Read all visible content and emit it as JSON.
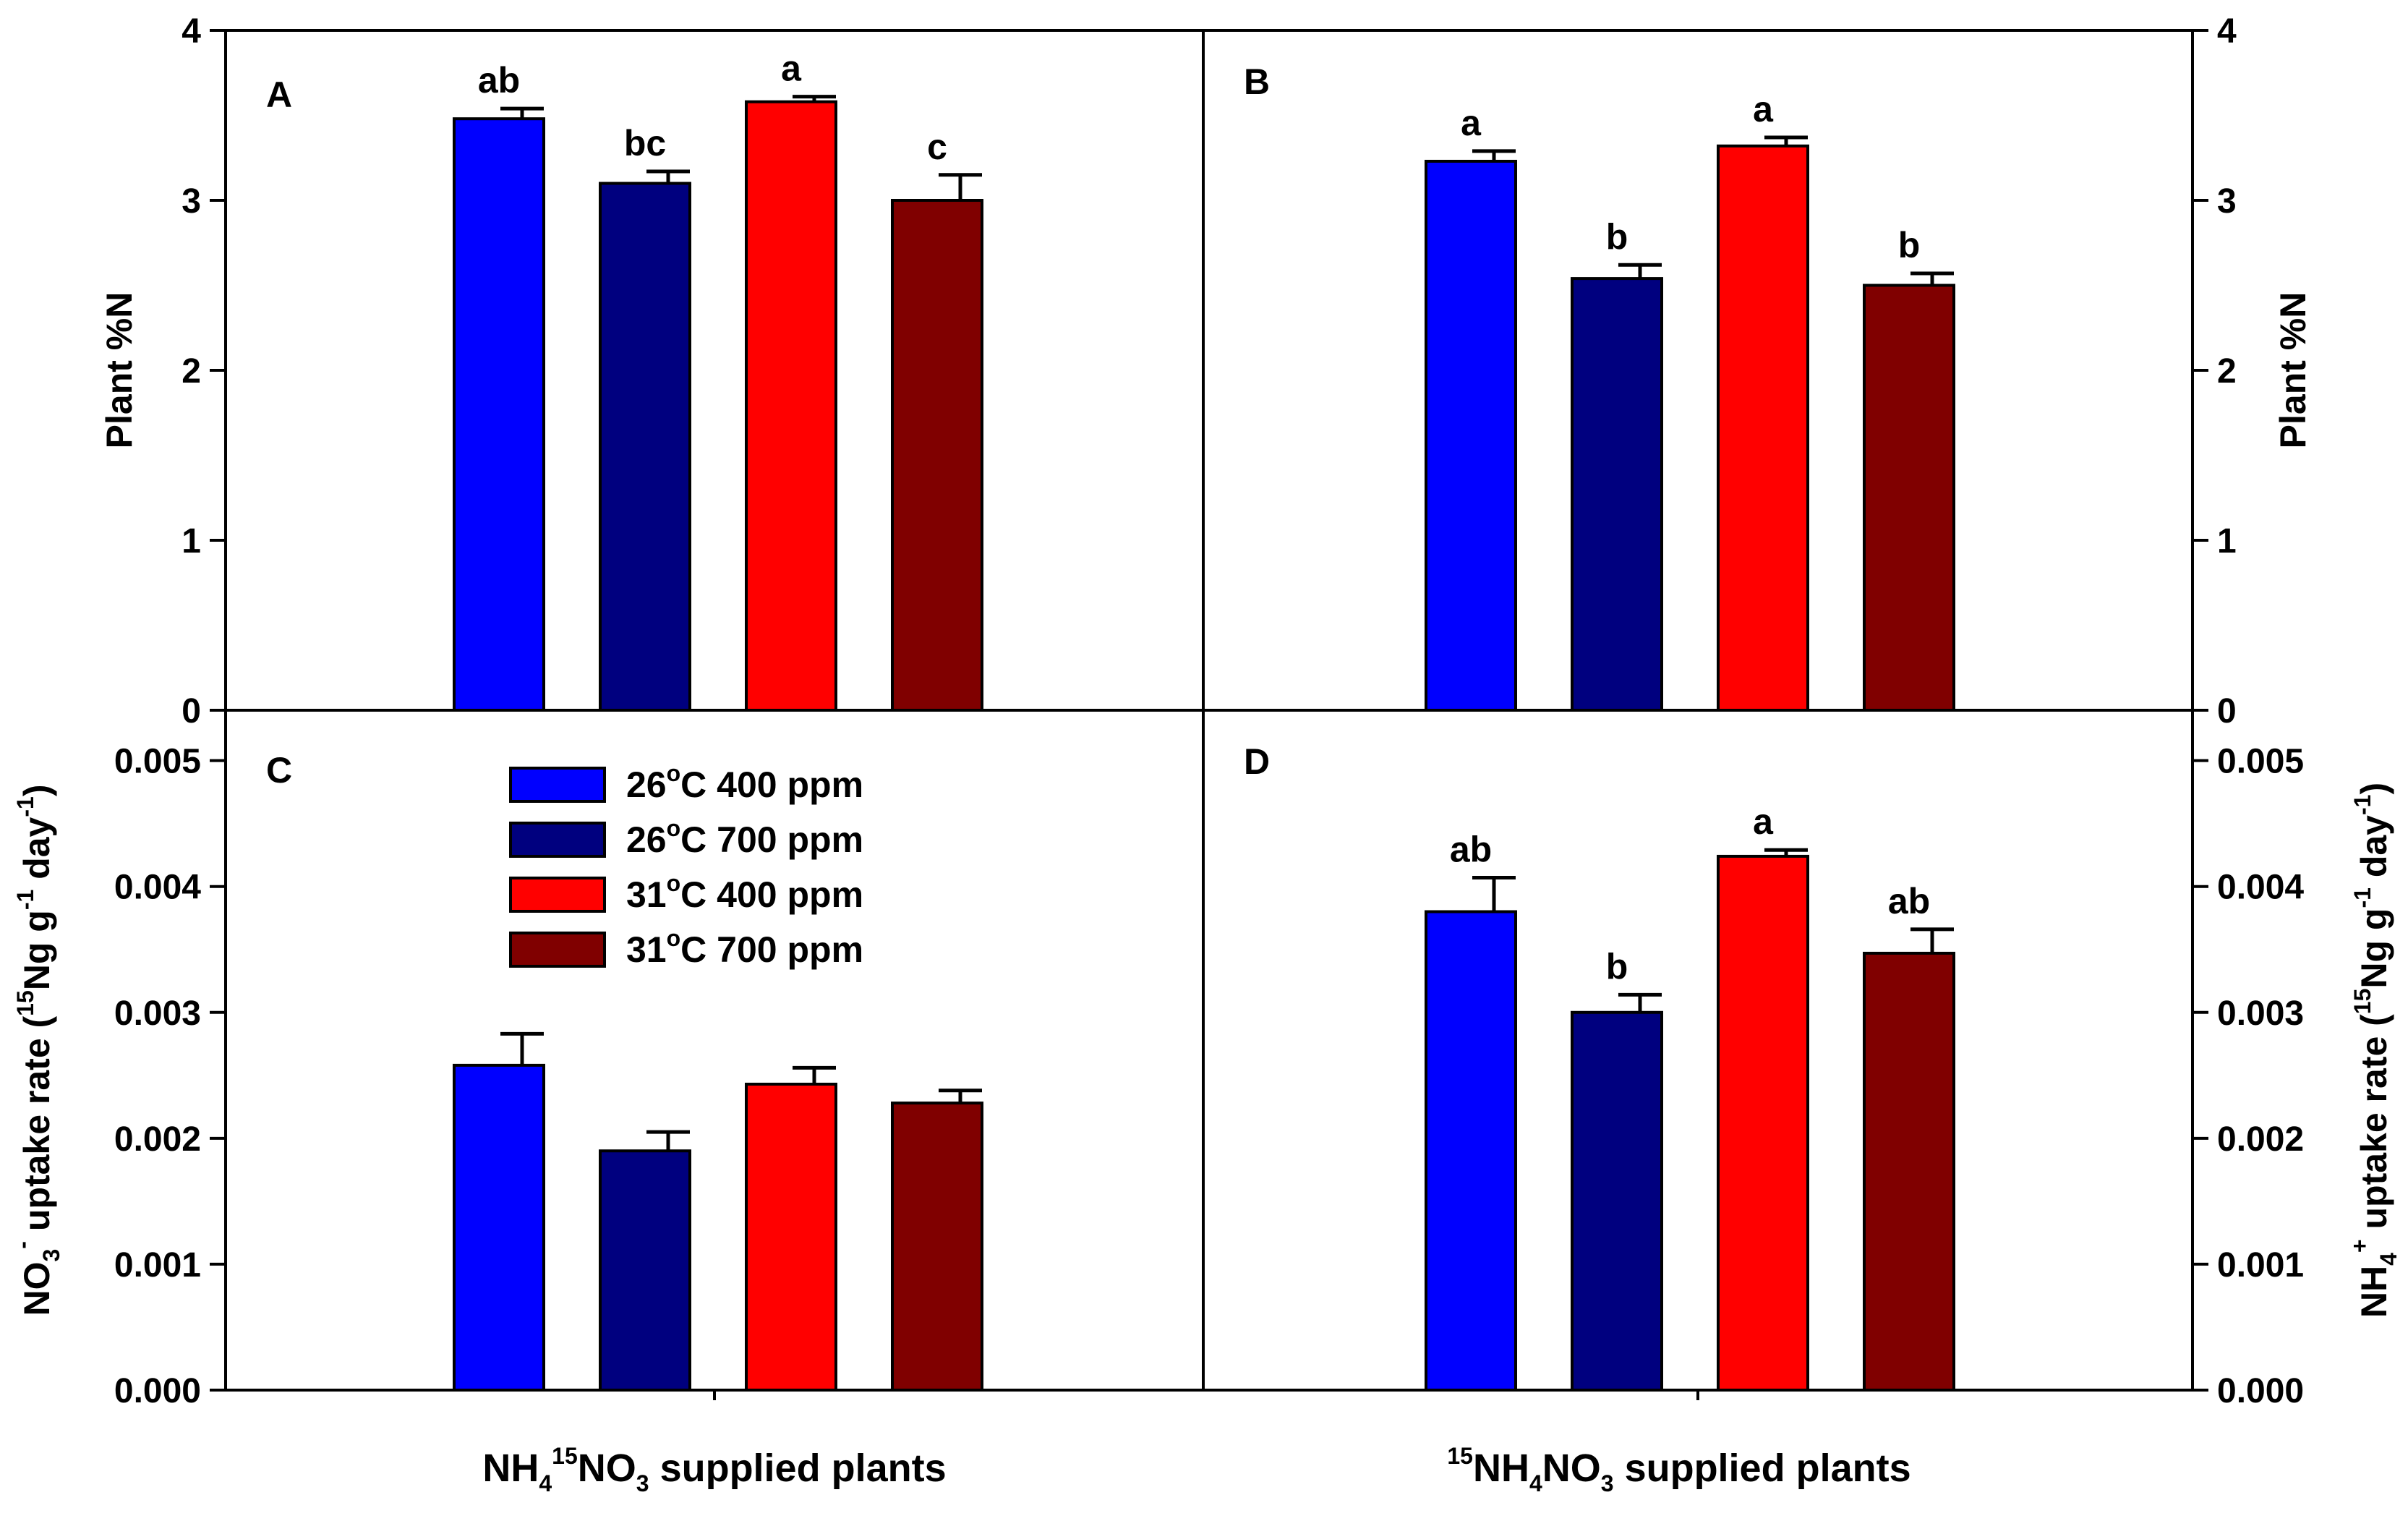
{
  "chart_data": [
    {
      "type": "bar",
      "panel": "A",
      "ylabel": "Plant %N",
      "ylim": [
        0,
        4
      ],
      "yticks": [
        0,
        1,
        2,
        3,
        4
      ],
      "ytick_labels": [
        "0",
        "1",
        "2",
        "3",
        "4"
      ],
      "axis_side": "left",
      "categories": [
        "26°C 400 ppm",
        "26°C 700 ppm",
        "31°C 400 ppm",
        "31°C 700 ppm"
      ],
      "values": [
        3.48,
        3.1,
        3.58,
        3.0
      ],
      "errors": [
        0.06,
        0.07,
        0.03,
        0.15
      ],
      "labels": [
        "ab",
        "bc",
        "a",
        "c"
      ]
    },
    {
      "type": "bar",
      "panel": "B",
      "ylabel": "Plant %N",
      "ylim": [
        0,
        4
      ],
      "yticks": [
        0,
        1,
        2,
        3,
        4
      ],
      "ytick_labels": [
        "0",
        "1",
        "2",
        "3",
        "4"
      ],
      "axis_side": "right",
      "categories": [
        "26°C 400 ppm",
        "26°C 700 ppm",
        "31°C 400 ppm",
        "31°C 700 ppm"
      ],
      "values": [
        3.23,
        2.54,
        3.32,
        2.5
      ],
      "errors": [
        0.06,
        0.08,
        0.05,
        0.07
      ],
      "labels": [
        "a",
        "b",
        "a",
        "b"
      ]
    },
    {
      "type": "bar",
      "panel": "C",
      "ylabel": "NO3- uptake rate (15Ng g-1 day-1)",
      "ylim": [
        0,
        0.0054
      ],
      "yticks": [
        0,
        0.001,
        0.002,
        0.003,
        0.004,
        0.005
      ],
      "ytick_labels": [
        "0.000",
        "0.001",
        "0.002",
        "0.003",
        "0.004",
        "0.005"
      ],
      "axis_side": "left",
      "categories": [
        "26°C 400 ppm",
        "26°C 700 ppm",
        "31°C 400 ppm",
        "31°C 700 ppm"
      ],
      "values": [
        0.00258,
        0.0019,
        0.00243,
        0.00228
      ],
      "errors": [
        0.00025,
        0.00015,
        0.00013,
        0.0001
      ],
      "labels": [
        "",
        "",
        "",
        ""
      ],
      "xlabel": "NH4 15NO3 supplied plants"
    },
    {
      "type": "bar",
      "panel": "D",
      "ylabel": "NH4+ uptake rate (15Ng g-1 day-1)",
      "ylim": [
        0,
        0.0054
      ],
      "yticks": [
        0,
        0.001,
        0.002,
        0.003,
        0.004,
        0.005
      ],
      "ytick_labels": [
        "0.000",
        "0.001",
        "0.002",
        "0.003",
        "0.004",
        "0.005"
      ],
      "axis_side": "right",
      "categories": [
        "26°C 400 ppm",
        "26°C 700 ppm",
        "31°C 400 ppm",
        "31°C 700 ppm"
      ],
      "values": [
        0.0038,
        0.003,
        0.00424,
        0.00347
      ],
      "errors": [
        0.00027,
        0.00014,
        5e-05,
        0.00019
      ],
      "labels": [
        "ab",
        "b",
        "a",
        "ab"
      ],
      "xlabel": "15NH4NO3 supplied plants"
    }
  ],
  "legend": {
    "placement": "upper-middle of panel C",
    "entries": [
      {
        "temp": "26",
        "deg": "o",
        "unit": "C",
        "co2": "400 ppm",
        "color": "#0000ff"
      },
      {
        "temp": "26",
        "deg": "o",
        "unit": "C",
        "co2": "700 ppm",
        "color": "#00007f"
      },
      {
        "temp": "31",
        "deg": "o",
        "unit": "C",
        "co2": "400 ppm",
        "color": "#ff0000"
      },
      {
        "temp": "31",
        "deg": "o",
        "unit": "C",
        "co2": "700 ppm",
        "color": "#800000"
      }
    ]
  },
  "colors": [
    "#0000ff",
    "#00007f",
    "#ff0000",
    "#800000"
  ],
  "ylabels_rich": {
    "plant_n": "Plant %N",
    "no3_main": "NO",
    "no3_sub": "3",
    "no3_sup": "-",
    "nh4_main": "NH",
    "nh4_sub": "4",
    "nh4_sup": "+",
    "uptake": " uptake rate (",
    "n15_sup": "15",
    "ng": "Ng g",
    "neg1": "-1",
    "day": " day",
    "close": ")"
  },
  "xlabels_rich": {
    "left_nh": "NH",
    "left_sub4": "4",
    "left_sup15": "15",
    "left_no": "NO",
    "left_sub3": "3",
    "left_rest": " supplied plants",
    "right_sup15": "15",
    "right_nh": "NH",
    "right_sub4": "4",
    "right_no3": "NO",
    "right_sub3": "3",
    "right_rest": " supplied plants"
  }
}
